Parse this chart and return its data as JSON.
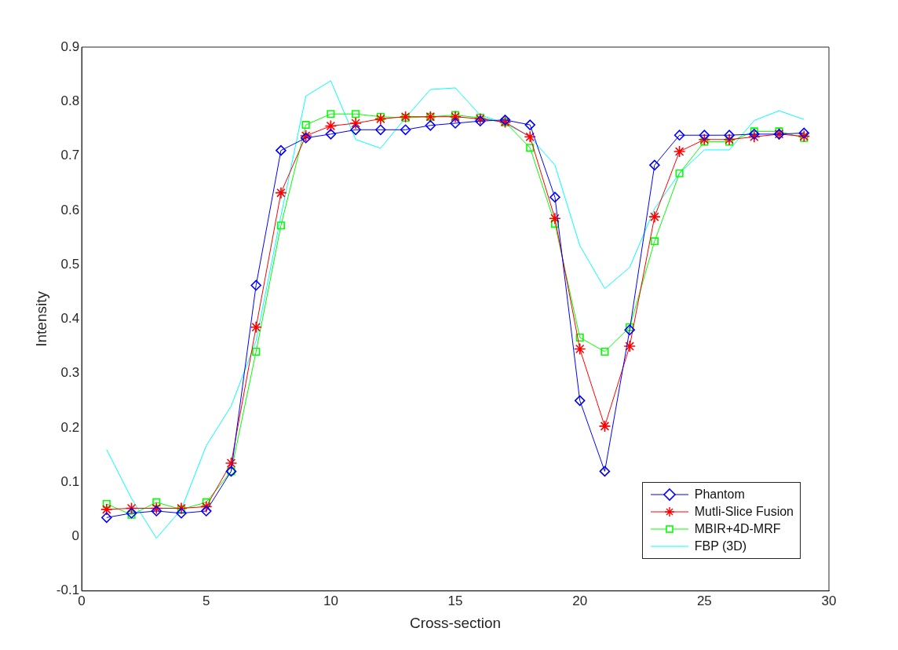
{
  "chart_data": {
    "type": "line",
    "xlabel": "Cross-section",
    "ylabel": "Intensity",
    "x": [
      1,
      2,
      3,
      4,
      5,
      6,
      7,
      8,
      9,
      10,
      11,
      12,
      13,
      14,
      15,
      16,
      17,
      18,
      19,
      20,
      21,
      22,
      23,
      24,
      25,
      26,
      27,
      28,
      29
    ],
    "xlim": [
      0,
      30
    ],
    "xticks": [
      0,
      5,
      10,
      15,
      20,
      25,
      30
    ],
    "ylim": [
      -0.1,
      0.9
    ],
    "yticks": [
      -0.1,
      0,
      0.1,
      0.2,
      0.3,
      0.4,
      0.5,
      0.6,
      0.7,
      0.8,
      0.9
    ],
    "grid": false,
    "legend": "bottom right",
    "line_style": "solid",
    "series": [
      {
        "name": "Phantom",
        "color": "#0000ff",
        "marker": "diamond",
        "values": [
          0.035,
          0.043,
          0.047,
          0.043,
          0.047,
          0.12,
          0.462,
          0.71,
          0.733,
          0.74,
          0.748,
          0.748,
          0.748,
          0.756,
          0.76,
          0.764,
          0.766,
          0.757,
          0.624,
          0.25,
          0.12,
          0.38,
          0.683,
          0.738,
          0.738,
          0.738,
          0.74,
          0.74,
          0.742
        ]
      },
      {
        "name": "Mutli-Slice Fusion",
        "color": "#ff0000",
        "marker": "cross",
        "values": [
          0.05,
          0.052,
          0.052,
          0.052,
          0.055,
          0.135,
          0.385,
          0.632,
          0.737,
          0.755,
          0.76,
          0.768,
          0.772,
          0.772,
          0.772,
          0.768,
          0.762,
          0.735,
          0.585,
          0.345,
          0.203,
          0.35,
          0.588,
          0.708,
          0.73,
          0.73,
          0.735,
          0.74,
          0.736
        ]
      },
      {
        "name": "MBIR+4D-MRF",
        "color": "#00ff00",
        "marker": "square",
        "values": [
          0.06,
          0.04,
          0.063,
          0.05,
          0.063,
          0.12,
          0.34,
          0.572,
          0.757,
          0.777,
          0.777,
          0.772,
          0.77,
          0.772,
          0.775,
          0.77,
          0.762,
          0.715,
          0.575,
          0.366,
          0.34,
          0.385,
          0.543,
          0.668,
          0.726,
          0.726,
          0.745,
          0.745,
          0.733
        ]
      },
      {
        "name": "FBP (3D)",
        "color": "#00ffff",
        "marker": "none",
        "values": [
          0.16,
          0.07,
          -0.003,
          0.05,
          0.167,
          0.24,
          0.36,
          0.59,
          0.81,
          0.838,
          0.73,
          0.714,
          0.77,
          0.822,
          0.825,
          0.775,
          0.76,
          0.735,
          0.683,
          0.535,
          0.456,
          0.495,
          0.603,
          0.668,
          0.711,
          0.711,
          0.765,
          0.783,
          0.767
        ]
      }
    ]
  }
}
